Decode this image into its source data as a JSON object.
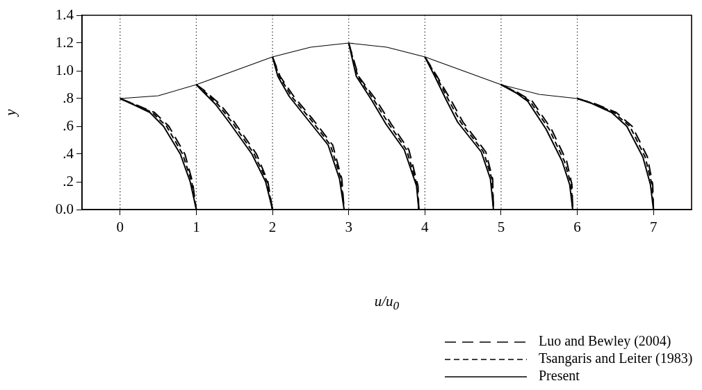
{
  "chart_data": {
    "type": "line",
    "xlabel": "u/u$_{0}$",
    "ylabel": "y",
    "xlim": [
      -0.5,
      7.5
    ],
    "xticks": [
      0,
      1,
      2,
      3,
      4,
      5,
      6,
      7
    ],
    "ylim": [
      0,
      1.4
    ],
    "yticks": [
      {
        "value": 0,
        "label": "0.0"
      },
      {
        "value": 0.2,
        "label": ".2"
      },
      {
        "value": 0.4,
        "label": ".4"
      },
      {
        "value": 0.6,
        "label": ".6"
      },
      {
        "value": 0.8,
        "label": ".8"
      },
      {
        "value": 1,
        "label": "1.0"
      },
      {
        "value": 1.2,
        "label": "1.2"
      },
      {
        "value": 1.4,
        "label": "1.4"
      }
    ],
    "grid": false,
    "legend": "bottom right",
    "marker": "none",
    "ref_lines": [
      {
        "axis": "x",
        "value": 0,
        "color": "#000000",
        "line_style": "dotted"
      },
      {
        "axis": "x",
        "value": 1,
        "color": "#000000",
        "line_style": "dotted"
      },
      {
        "axis": "x",
        "value": 2,
        "color": "#000000",
        "line_style": "dotted"
      },
      {
        "axis": "x",
        "value": 3,
        "color": "#000000",
        "line_style": "dotted"
      },
      {
        "axis": "x",
        "value": 4,
        "color": "#000000",
        "line_style": "dotted"
      },
      {
        "axis": "x",
        "value": 5,
        "color": "#000000",
        "line_style": "dotted"
      },
      {
        "axis": "x",
        "value": 6,
        "color": "#000000",
        "line_style": "dotted"
      }
    ],
    "series": [
      {
        "name": "Luo and Bewley (2004)",
        "color": "#000000",
        "line_style": "dashed",
        "x": [
          0,
          0.23,
          0.45,
          0.64,
          0.85,
          0.95,
          1
        ],
        "values": [
          0.8,
          0.75,
          0.7,
          0.6,
          0.4,
          0.2,
          0
        ]
      },
      {
        "color": "#000000",
        "line_style": "dashed",
        "x": [
          1,
          1.09,
          1.31,
          1.5,
          1.79,
          1.94,
          2
        ],
        "values": [
          0.9,
          0.865,
          0.76,
          0.63,
          0.4,
          0.2,
          0
        ]
      },
      {
        "color": "#000000",
        "line_style": "dashed",
        "x": [
          2,
          2.1,
          2.28,
          2.53,
          2.79,
          2.91,
          2.94
        ],
        "values": [
          1.1,
          0.96,
          0.815,
          0.65,
          0.465,
          0.22,
          0
        ]
      },
      {
        "color": "#000000",
        "line_style": "dashed",
        "x": [
          3,
          3.13,
          3.36,
          3.56,
          3.79,
          3.91,
          3.92
        ],
        "values": [
          1.2,
          0.96,
          0.79,
          0.615,
          0.43,
          0.17,
          0
        ]
      },
      {
        "color": "#000000",
        "line_style": "dashed",
        "x": [
          4,
          4.16,
          4.34,
          4.5,
          4.8,
          4.89,
          4.9
        ],
        "values": [
          1.1,
          0.96,
          0.79,
          0.63,
          0.415,
          0.22,
          0
        ]
      },
      {
        "color": "#000000",
        "line_style": "dashed",
        "x": [
          5,
          5.23,
          5.41,
          5.66,
          5.86,
          5.93,
          5.94
        ],
        "values": [
          0.9,
          0.84,
          0.78,
          0.58,
          0.35,
          0.18,
          0
        ]
      },
      {
        "color": "#000000",
        "line_style": "dashed",
        "x": [
          6,
          6.22,
          6.51,
          6.72,
          6.92,
          6.99,
          7
        ],
        "values": [
          0.8,
          0.765,
          0.7,
          0.6,
          0.38,
          0.18,
          0
        ]
      },
      {
        "name": "Tsangaris and Leiter (1983)",
        "color": "#000000",
        "line_style": "dashed",
        "x": [
          0,
          0.22,
          0.42,
          0.61,
          0.82,
          0.94,
          1
        ],
        "values": [
          0.8,
          0.75,
          0.7,
          0.6,
          0.4,
          0.2,
          0
        ]
      },
      {
        "color": "#000000",
        "line_style": "dashed",
        "x": [
          1,
          1.08,
          1.28,
          1.47,
          1.76,
          1.93,
          2
        ],
        "values": [
          0.9,
          0.865,
          0.76,
          0.63,
          0.4,
          0.2,
          0
        ]
      },
      {
        "color": "#000000",
        "line_style": "dashed",
        "x": [
          2,
          2.09,
          2.25,
          2.5,
          2.76,
          2.9,
          2.94
        ],
        "values": [
          1.1,
          0.96,
          0.815,
          0.65,
          0.465,
          0.22,
          0
        ]
      },
      {
        "color": "#000000",
        "line_style": "dashed",
        "x": [
          3,
          3.12,
          3.33,
          3.53,
          3.76,
          3.9,
          3.92
        ],
        "values": [
          1.2,
          0.96,
          0.79,
          0.615,
          0.43,
          0.17,
          0
        ]
      },
      {
        "color": "#000000",
        "line_style": "dashed",
        "x": [
          4,
          4.15,
          4.31,
          4.47,
          4.77,
          4.88,
          4.9
        ],
        "values": [
          1.1,
          0.96,
          0.79,
          0.63,
          0.415,
          0.22,
          0
        ]
      },
      {
        "color": "#000000",
        "line_style": "dashed",
        "x": [
          5,
          5.22,
          5.38,
          5.63,
          5.83,
          5.92,
          5.94
        ],
        "values": [
          0.9,
          0.84,
          0.78,
          0.58,
          0.35,
          0.18,
          0
        ]
      },
      {
        "color": "#000000",
        "line_style": "dashed",
        "x": [
          6,
          6.21,
          6.48,
          6.69,
          6.89,
          6.98,
          7
        ],
        "values": [
          0.8,
          0.765,
          0.7,
          0.6,
          0.38,
          0.18,
          0
        ]
      },
      {
        "name": "Present",
        "color": "#000000",
        "line_style": "solid",
        "x": [
          0,
          0.2,
          0.39,
          0.57,
          0.79,
          0.92,
          1
        ],
        "values": [
          0.8,
          0.75,
          0.7,
          0.6,
          0.4,
          0.2,
          0
        ]
      },
      {
        "color": "#000000",
        "line_style": "solid",
        "x": [
          1,
          1.06,
          1.25,
          1.43,
          1.73,
          1.91,
          2
        ],
        "values": [
          0.9,
          0.865,
          0.76,
          0.63,
          0.4,
          0.2,
          0
        ]
      },
      {
        "color": "#000000",
        "line_style": "solid",
        "x": [
          2,
          2.07,
          2.22,
          2.46,
          2.73,
          2.88,
          2.94
        ],
        "values": [
          1.1,
          0.96,
          0.815,
          0.65,
          0.465,
          0.22,
          0
        ]
      },
      {
        "color": "#000000",
        "line_style": "solid",
        "x": [
          3,
          3.1,
          3.3,
          3.49,
          3.73,
          3.89,
          3.92
        ],
        "values": [
          1.2,
          0.96,
          0.79,
          0.615,
          0.43,
          0.17,
          0
        ]
      },
      {
        "color": "#000000",
        "line_style": "solid",
        "x": [
          4,
          4.13,
          4.28,
          4.43,
          4.74,
          4.86,
          4.9
        ],
        "values": [
          1.1,
          0.96,
          0.79,
          0.63,
          0.415,
          0.22,
          0
        ]
      },
      {
        "color": "#000000",
        "line_style": "solid",
        "x": [
          5,
          5.2,
          5.35,
          5.59,
          5.8,
          5.9,
          5.94
        ],
        "values": [
          0.9,
          0.84,
          0.78,
          0.58,
          0.35,
          0.18,
          0
        ]
      },
      {
        "color": "#000000",
        "line_style": "solid",
        "x": [
          6,
          6.19,
          6.45,
          6.65,
          6.86,
          6.96,
          7
        ],
        "values": [
          0.8,
          0.765,
          0.7,
          0.6,
          0.38,
          0.18,
          0
        ]
      },
      {
        "color": "#000000",
        "line_style": "solid",
        "x": [
          0,
          0.5,
          1,
          1.5,
          2,
          2.5,
          3,
          3.5,
          4,
          4.5,
          5,
          5.5,
          6
        ],
        "values": [
          0.8,
          0.82,
          0.9,
          1.0,
          1.1,
          1.17,
          1.2,
          1.17,
          1.1,
          1.0,
          0.9,
          0.83,
          0.8
        ]
      }
    ]
  }
}
